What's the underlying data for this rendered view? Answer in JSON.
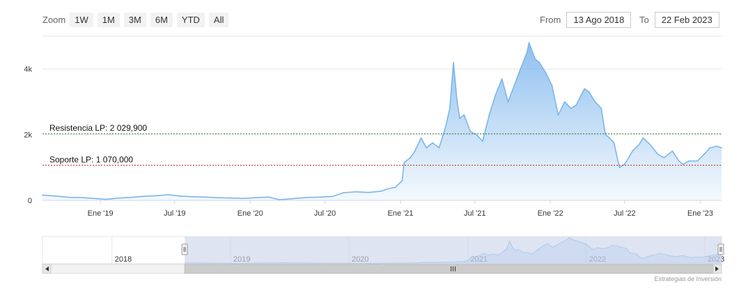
{
  "zoom": {
    "label": "Zoom",
    "buttons": [
      "1W",
      "1M",
      "3M",
      "6M",
      "YTD",
      "All"
    ]
  },
  "range": {
    "from_label": "From",
    "from_value": "13 Ago 2018",
    "to_label": "To",
    "to_value": "22 Feb 2023"
  },
  "credit": "Estrategias de Inversión",
  "colors": {
    "line": "#7cb5ec",
    "resistance": "#2e7d32",
    "support": "#c62828",
    "navigator_mask": "#ccd6eb"
  },
  "chart_data": {
    "type": "area",
    "title": "",
    "xlabel": "",
    "ylabel": "",
    "ylim": [
      0,
      5000
    ],
    "y_ticks": [
      {
        "value": 0,
        "label": "0"
      },
      {
        "value": 2000,
        "label": "2k"
      },
      {
        "value": 4000,
        "label": "4k"
      }
    ],
    "x_ticks": [
      {
        "date": "2019-01-01",
        "label": "Ene '19"
      },
      {
        "date": "2019-07-01",
        "label": "Jul '19"
      },
      {
        "date": "2020-01-01",
        "label": "Ene '20"
      },
      {
        "date": "2020-07-01",
        "label": "Jul '20"
      },
      {
        "date": "2021-01-01",
        "label": "Ene '21"
      },
      {
        "date": "2021-07-01",
        "label": "Jul '21"
      },
      {
        "date": "2022-01-01",
        "label": "Ene '22"
      },
      {
        "date": "2022-07-01",
        "label": "Jul '22"
      },
      {
        "date": "2023-01-01",
        "label": "Ene '23"
      }
    ],
    "xlim": [
      "2018-08-13",
      "2023-02-22"
    ],
    "grid": true,
    "series": [
      {
        "points": [
          [
            "2018-08-13",
            160
          ],
          [
            "2018-09-15",
            130
          ],
          [
            "2018-10-20",
            90
          ],
          [
            "2018-11-20",
            80
          ],
          [
            "2018-12-15",
            60
          ],
          [
            "2019-01-15",
            30
          ],
          [
            "2019-02-15",
            70
          ],
          [
            "2019-03-15",
            90
          ],
          [
            "2019-04-15",
            120
          ],
          [
            "2019-05-15",
            140
          ],
          [
            "2019-06-15",
            170
          ],
          [
            "2019-07-15",
            130
          ],
          [
            "2019-08-15",
            110
          ],
          [
            "2019-09-15",
            100
          ],
          [
            "2019-10-15",
            80
          ],
          [
            "2019-11-15",
            70
          ],
          [
            "2019-12-15",
            60
          ],
          [
            "2020-01-15",
            80
          ],
          [
            "2020-02-15",
            100
          ],
          [
            "2020-03-12",
            20
          ],
          [
            "2020-03-25",
            30
          ],
          [
            "2020-04-20",
            60
          ],
          [
            "2020-05-20",
            90
          ],
          [
            "2020-06-20",
            100
          ],
          [
            "2020-07-20",
            120
          ],
          [
            "2020-08-15",
            230
          ],
          [
            "2020-09-15",
            260
          ],
          [
            "2020-10-15",
            240
          ],
          [
            "2020-11-15",
            280
          ],
          [
            "2020-12-01",
            350
          ],
          [
            "2020-12-20",
            400
          ],
          [
            "2021-01-05",
            600
          ],
          [
            "2021-01-10",
            1150
          ],
          [
            "2021-01-25",
            1300
          ],
          [
            "2021-02-05",
            1500
          ],
          [
            "2021-02-20",
            1900
          ],
          [
            "2021-03-05",
            1600
          ],
          [
            "2021-03-20",
            1750
          ],
          [
            "2021-04-05",
            1600
          ],
          [
            "2021-04-20",
            2200
          ],
          [
            "2021-05-01",
            2800
          ],
          [
            "2021-05-10",
            4200
          ],
          [
            "2021-05-18",
            3100
          ],
          [
            "2021-05-25",
            2500
          ],
          [
            "2021-06-05",
            2600
          ],
          [
            "2021-06-20",
            2100
          ],
          [
            "2021-07-05",
            2000
          ],
          [
            "2021-07-20",
            1800
          ],
          [
            "2021-08-05",
            2600
          ],
          [
            "2021-08-20",
            3200
          ],
          [
            "2021-09-05",
            3700
          ],
          [
            "2021-09-20",
            3000
          ],
          [
            "2021-10-05",
            3500
          ],
          [
            "2021-10-20",
            4000
          ],
          [
            "2021-11-05",
            4500
          ],
          [
            "2021-11-10",
            4800
          ],
          [
            "2021-11-25",
            4300
          ],
          [
            "2021-12-05",
            4200
          ],
          [
            "2021-12-20",
            3900
          ],
          [
            "2022-01-05",
            3500
          ],
          [
            "2022-01-20",
            2600
          ],
          [
            "2022-02-05",
            3000
          ],
          [
            "2022-02-20",
            2800
          ],
          [
            "2022-03-05",
            2900
          ],
          [
            "2022-03-25",
            3400
          ],
          [
            "2022-04-05",
            3300
          ],
          [
            "2022-04-20",
            3000
          ],
          [
            "2022-05-05",
            2800
          ],
          [
            "2022-05-15",
            2000
          ],
          [
            "2022-05-25",
            1900
          ],
          [
            "2022-06-05",
            1750
          ],
          [
            "2022-06-18",
            1000
          ],
          [
            "2022-07-01",
            1100
          ],
          [
            "2022-07-20",
            1500
          ],
          [
            "2022-08-05",
            1700
          ],
          [
            "2022-08-15",
            1900
          ],
          [
            "2022-09-01",
            1700
          ],
          [
            "2022-09-20",
            1400
          ],
          [
            "2022-10-05",
            1300
          ],
          [
            "2022-10-25",
            1500
          ],
          [
            "2022-11-10",
            1200
          ],
          [
            "2022-11-20",
            1100
          ],
          [
            "2022-12-05",
            1200
          ],
          [
            "2022-12-25",
            1200
          ],
          [
            "2023-01-10",
            1400
          ],
          [
            "2023-01-25",
            1600
          ],
          [
            "2023-02-10",
            1650
          ],
          [
            "2023-02-22",
            1600
          ]
        ]
      }
    ],
    "annotations": [
      {
        "label": "Resistencia LP: 2 029,900",
        "value": 2029.9,
        "color": "#2e7d32"
      },
      {
        "label": "Soporte LP: 1 070,000",
        "value": 1070.0,
        "color": "#c62828"
      }
    ],
    "navigator": {
      "x_ticks": [
        {
          "date": "2018-01-01",
          "label": "2018"
        },
        {
          "date": "2019-01-01",
          "label": "2019"
        },
        {
          "date": "2020-01-01",
          "label": "2020"
        },
        {
          "date": "2021-01-01",
          "label": "2021"
        },
        {
          "date": "2022-01-01",
          "label": "2022"
        },
        {
          "date": "2023-01-01",
          "label": "2023"
        }
      ],
      "xlim": [
        "2017-06-01",
        "2023-02-22"
      ],
      "selected": [
        "2018-08-13",
        "2023-02-22"
      ]
    }
  }
}
